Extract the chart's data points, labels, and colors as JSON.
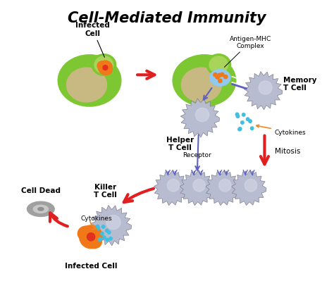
{
  "title": "Cell-Mediated Immunity",
  "title_fontsize": 15,
  "bg_color": "#ffffff",
  "labels": {
    "infected_cell_top": "Infected\nCell",
    "antigen_mhc": "Antigen-MHC\nComplex",
    "memory_t_cell": "Memory\nT Cell",
    "helper_t_cell": "Helper\nT Cell",
    "cytokines_right": "Cytokines",
    "receptor": "Receptor",
    "mitosis": "Mitosis",
    "killer_t_cell": "Killer\nT Cell",
    "cytokines_left": "Cytokines",
    "cell_dead": "Cell Dead",
    "infected_cell_bottom": "Infected Cell"
  },
  "colors": {
    "green_cell_outer": "#7dc832",
    "green_cell_inner": "#a8d45a",
    "nucleus_tan": "#c8b882",
    "orange_infected": "#f07818",
    "red_virus": "#e03020",
    "blue_mhc": "#90c8f0",
    "t_cell_gray": "#b8bcd0",
    "t_cell_light": "#d0d4e8",
    "purple_receptor": "#6060c0",
    "cyan_cytokine": "#40c0e0",
    "orange_cytokine_arrow": "#f08820",
    "red_arrow": "#e02020",
    "dark_gray_dead": "#a0a0a0",
    "light_gray_dead": "#c8c8c8",
    "bg_color": "#ffffff"
  }
}
